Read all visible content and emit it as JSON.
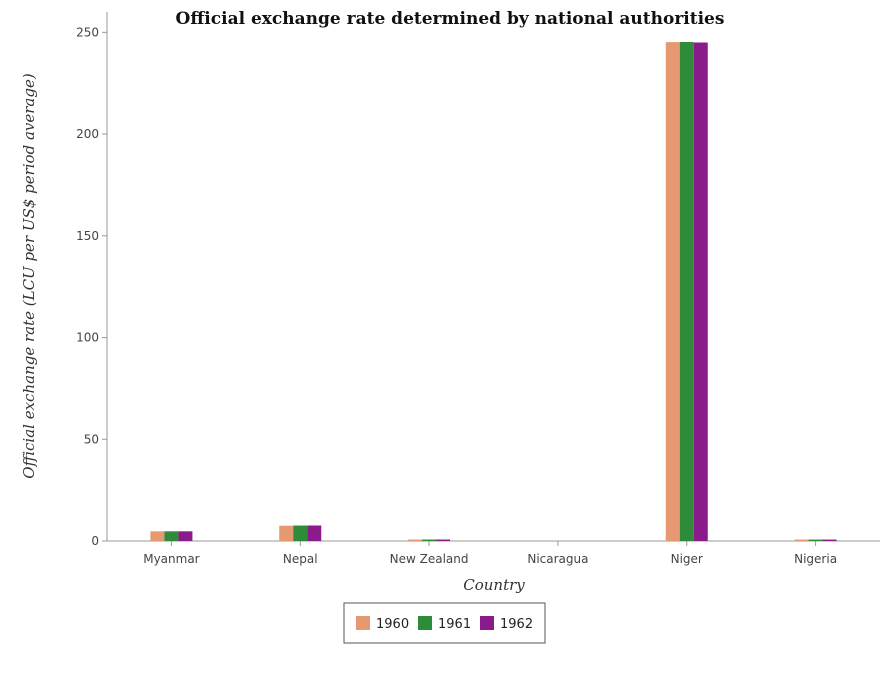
{
  "chart_data": {
    "type": "bar",
    "title": "Official exchange rate determined by national authorities",
    "xlabel": "Country",
    "ylabel": "Official exchange rate (LCU per US$ period average)",
    "categories": [
      "Myanmar",
      "Nepal",
      "New Zealand",
      "Nicaragua",
      "Niger",
      "Nigeria"
    ],
    "series": [
      {
        "name": "1960",
        "color": "#e69870",
        "values": [
          4.76,
          7.51,
          0.71,
          0.0,
          245.2,
          0.71
        ]
      },
      {
        "name": "1961",
        "color": "#2e8b3a",
        "values": [
          4.76,
          7.61,
          0.72,
          0.0,
          245.26,
          0.71
        ]
      },
      {
        "name": "1962",
        "color": "#8b1a8b",
        "values": [
          4.76,
          7.62,
          0.72,
          0.0,
          245.01,
          0.71
        ]
      }
    ],
    "ylim": [
      0,
      260
    ],
    "yticks": [
      0,
      50,
      100,
      150,
      200,
      250
    ],
    "grid": false,
    "legend_position": "bottom-center"
  }
}
